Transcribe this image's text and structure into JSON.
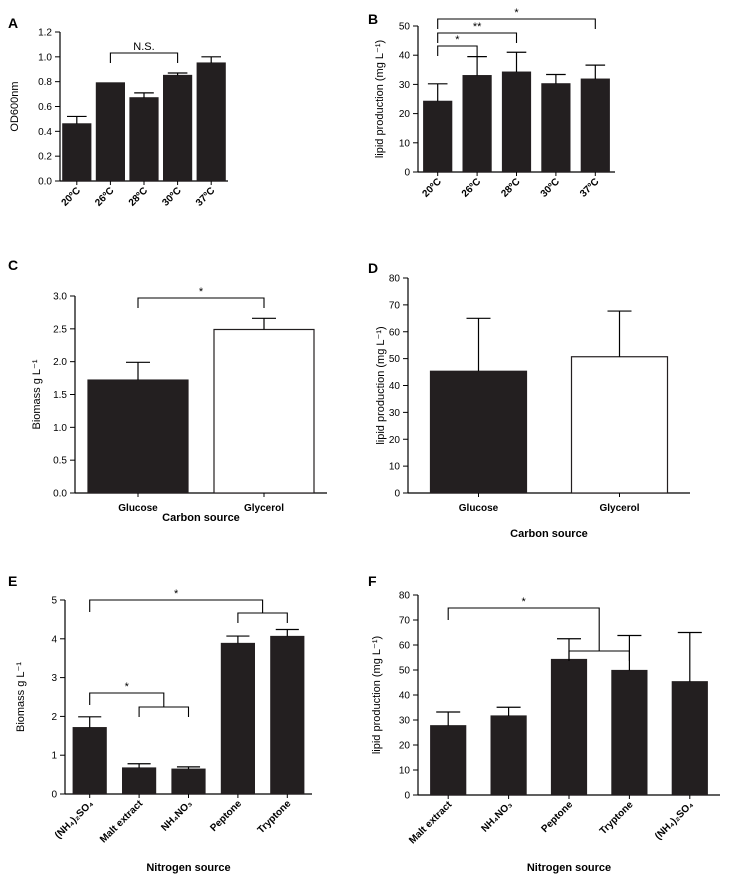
{
  "chart_data": [
    {
      "panel": "A",
      "type": "bar",
      "ylabel": "OD600nm",
      "xlabel": "",
      "ylim": [
        0,
        1.2
      ],
      "yticks": [
        0.0,
        0.2,
        0.4,
        0.6,
        0.8,
        1.0,
        1.2
      ],
      "categories": [
        "20ºC",
        "26ºC",
        "28ºC",
        "30ºC",
        "37ºC"
      ],
      "values": [
        0.46,
        0.79,
        0.67,
        0.85,
        0.95
      ],
      "errors": [
        0.06,
        0.0,
        0.04,
        0.02,
        0.05
      ],
      "fills": [
        "#231f20",
        "#231f20",
        "#231f20",
        "#231f20",
        "#231f20"
      ],
      "brackets": [
        {
          "from": 1,
          "to": 3,
          "label": "N.S."
        }
      ]
    },
    {
      "panel": "B",
      "type": "bar",
      "ylabel": "lipid production (mg L⁻¹)",
      "xlabel": "",
      "ylim": [
        0,
        50
      ],
      "yticks": [
        0,
        10,
        20,
        30,
        40,
        50
      ],
      "categories": [
        "20ºC",
        "26ºC",
        "28ºC",
        "30ºC",
        "37ºC"
      ],
      "values": [
        24.2,
        33.0,
        34.2,
        30.2,
        31.8
      ],
      "errors": [
        6.0,
        6.5,
        6.8,
        3.2,
        4.8
      ],
      "fills": [
        "#231f20",
        "#231f20",
        "#231f20",
        "#231f20",
        "#231f20"
      ],
      "brackets": [
        {
          "from": 0,
          "to": 1,
          "label": "*"
        },
        {
          "from": 0,
          "to": 2,
          "label": "**"
        },
        {
          "from": 0,
          "to": 4,
          "label": "*"
        }
      ]
    },
    {
      "panel": "C",
      "type": "bar",
      "ylabel": "Biomass g L⁻¹",
      "xlabel": "Carbon source",
      "ylim": [
        0,
        3.0
      ],
      "yticks": [
        0.0,
        0.5,
        1.0,
        1.5,
        2.0,
        2.5,
        3.0
      ],
      "categories": [
        "Glucose",
        "Glycerol"
      ],
      "values": [
        1.72,
        2.49
      ],
      "errors": [
        0.27,
        0.17
      ],
      "fills": [
        "#231f20",
        "#ffffff"
      ],
      "brackets": [
        {
          "from": 0,
          "to": 1,
          "label": "*"
        }
      ]
    },
    {
      "panel": "D",
      "type": "bar",
      "ylabel": "lipid production (mg L⁻¹)",
      "xlabel": "Carbon source",
      "ylim": [
        0,
        80
      ],
      "yticks": [
        0,
        10,
        20,
        30,
        40,
        50,
        60,
        70,
        80
      ],
      "categories": [
        "Glucose",
        "Glycerol"
      ],
      "values": [
        45.3,
        50.7
      ],
      "errors": [
        19.7,
        17.0
      ],
      "fills": [
        "#231f20",
        "#ffffff"
      ],
      "brackets": []
    },
    {
      "panel": "E",
      "type": "bar",
      "ylabel": "Biomass g L⁻¹",
      "xlabel": "Nitrogen source",
      "ylim": [
        0,
        5
      ],
      "yticks": [
        0,
        1,
        2,
        3,
        4,
        5
      ],
      "categories": [
        "(NH₄)₂SO₄",
        "Malt extract",
        "NH₄NO₃",
        "Peptone",
        "Tryptone"
      ],
      "values": [
        1.71,
        0.67,
        0.64,
        3.88,
        4.06
      ],
      "errors": [
        0.28,
        0.11,
        0.06,
        0.19,
        0.18
      ],
      "fills": [
        "#231f20",
        "#231f20",
        "#231f20",
        "#231f20",
        "#231f20"
      ],
      "brackets": [
        {
          "from": 0,
          "to": "3-4",
          "label": "*"
        },
        {
          "from": 0,
          "to": "1-2",
          "label": "*"
        }
      ]
    },
    {
      "panel": "F",
      "type": "bar",
      "ylabel": "lipid production (mg L⁻¹)",
      "xlabel": "Nitrogen source",
      "ylim": [
        0,
        80
      ],
      "yticks": [
        0,
        10,
        20,
        30,
        40,
        50,
        60,
        70,
        80
      ],
      "categories": [
        "Malt extract",
        "NH₄NO₃",
        "Peptone",
        "Tryptone",
        "(NH₄)₂SO₄"
      ],
      "values": [
        27.7,
        31.6,
        54.2,
        49.8,
        45.3
      ],
      "errors": [
        5.5,
        3.5,
        8.3,
        14.0,
        19.7
      ],
      "fills": [
        "#231f20",
        "#231f20",
        "#231f20",
        "#231f20",
        "#231f20"
      ],
      "brackets": [
        {
          "from": 0,
          "to": "2-3",
          "label": "*"
        }
      ]
    }
  ]
}
